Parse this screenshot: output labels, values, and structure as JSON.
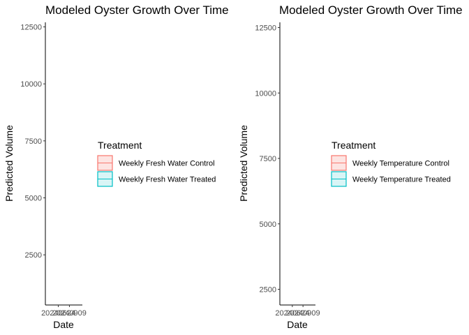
{
  "chart_data": [
    {
      "type": "line",
      "title": "Modeled Oyster Growth Over Time",
      "xlabel": "Date",
      "ylabel": "Predicted Volume",
      "x_ticks": [
        "20240624",
        "20240909"
      ],
      "y_ticks": [
        2500,
        5000,
        7500,
        10000
      ],
      "y_top_label": 12500,
      "ylim": [
        300,
        12700
      ],
      "grid": false,
      "legend_title": "Treatment",
      "legend_placement": "right",
      "series": [
        {
          "name": "Weekly Fresh Water Control",
          "color": "#F8766D",
          "fill": "#FDE4E2",
          "values": []
        },
        {
          "name": "Weekly Fresh Water Treated",
          "color": "#00BFC4",
          "fill": "#D9F5F6",
          "values": []
        }
      ]
    },
    {
      "type": "line",
      "title": "Modeled Oyster Growth Over Time",
      "xlabel": "Date",
      "ylabel": "Predicted Volume",
      "x_ticks": [
        "20240624",
        "20240909"
      ],
      "y_ticks": [
        2500,
        5000,
        7500,
        10000
      ],
      "y_top_label": 12500,
      "ylim": [
        1900,
        12700
      ],
      "grid": false,
      "legend_title": "Treatment",
      "legend_placement": "right",
      "series": [
        {
          "name": "Weekly Temperature Control",
          "color": "#F8766D",
          "fill": "#FDE4E2",
          "values": []
        },
        {
          "name": "Weekly Temperature Treated",
          "color": "#00BFC4",
          "fill": "#D9F5F6",
          "values": []
        }
      ]
    }
  ]
}
